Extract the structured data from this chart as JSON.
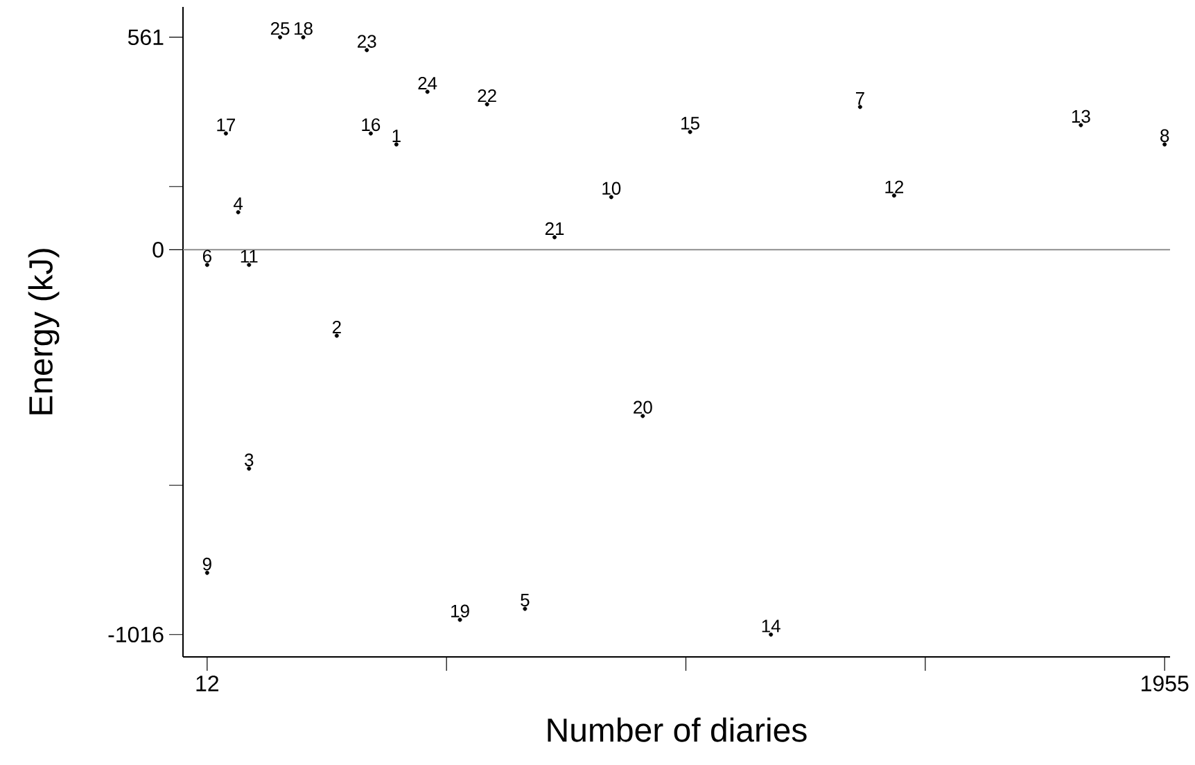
{
  "chart_data": {
    "type": "scatter",
    "xlabel": "Number of diaries",
    "ylabel": "Energy (kJ)",
    "marker": "circle",
    "series": [
      {
        "name": "1",
        "color": "#000000",
        "x": [
          396
        ],
        "values": [
          278
        ]
      },
      {
        "name": "2",
        "color": "#000000",
        "x": [
          275
        ],
        "values": [
          -227
        ]
      },
      {
        "name": "3",
        "color": "#000000",
        "x": [
          97
        ],
        "values": [
          -578
        ]
      },
      {
        "name": "4",
        "color": "#000000",
        "x": [
          75
        ],
        "values": [
          99
        ]
      },
      {
        "name": "5",
        "color": "#000000",
        "x": [
          657
        ],
        "values": [
          -948
        ]
      },
      {
        "name": "6",
        "color": "#000000",
        "x": [
          12
        ],
        "values": [
          -40
        ]
      },
      {
        "name": "7",
        "color": "#000000",
        "x": [
          1337
        ],
        "values": [
          377
        ]
      },
      {
        "name": "8",
        "color": "#000000",
        "x": [
          1955
        ],
        "values": [
          278
        ]
      },
      {
        "name": "9",
        "color": "#000000",
        "x": [
          12
        ],
        "values": [
          -853
        ]
      },
      {
        "name": "10",
        "color": "#000000",
        "x": [
          832
        ],
        "values": [
          139
        ]
      },
      {
        "name": "11",
        "color": "#000000",
        "x": [
          97
        ],
        "values": [
          -40
        ]
      },
      {
        "name": "12",
        "color": "#000000",
        "x": [
          1406
        ],
        "values": [
          143
        ]
      },
      {
        "name": "13",
        "color": "#000000",
        "x": [
          1785
        ],
        "values": [
          329
        ]
      },
      {
        "name": "14",
        "color": "#000000",
        "x": [
          1156
        ],
        "values": [
          -1016
        ]
      },
      {
        "name": "15",
        "color": "#000000",
        "x": [
          992
        ],
        "values": [
          311
        ]
      },
      {
        "name": "16",
        "color": "#000000",
        "x": [
          344
        ],
        "values": [
          307
        ]
      },
      {
        "name": "17",
        "color": "#000000",
        "x": [
          50
        ],
        "values": [
          307
        ]
      },
      {
        "name": "18",
        "color": "#000000",
        "x": [
          207
        ],
        "values": [
          561
        ]
      },
      {
        "name": "19",
        "color": "#000000",
        "x": [
          525
        ],
        "values": [
          -977
        ]
      },
      {
        "name": "20",
        "color": "#000000",
        "x": [
          896
        ],
        "values": [
          -439
        ]
      },
      {
        "name": "21",
        "color": "#000000",
        "x": [
          717
        ],
        "values": [
          33
        ]
      },
      {
        "name": "22",
        "color": "#000000",
        "x": [
          580
        ],
        "values": [
          384
        ]
      },
      {
        "name": "23",
        "color": "#000000",
        "x": [
          336
        ],
        "values": [
          527
        ]
      },
      {
        "name": "24",
        "color": "#000000",
        "x": [
          459
        ],
        "values": [
          417
        ]
      },
      {
        "name": "25",
        "color": "#000000",
        "x": [
          160
        ],
        "values": [
          561
        ]
      }
    ],
    "xlim": [
      -37,
      1966
    ],
    "ylim": [
      -1075,
      641
    ],
    "xticks": [
      12,
      {
        "value": 497.75,
        "label": null
      },
      {
        "value": 983.5,
        "label": null
      },
      {
        "value": 1469.25,
        "label": null
      },
      1955
    ],
    "yticks": [
      -1016,
      {
        "value": -621.75,
        "label": null
      },
      0,
      {
        "value": 166.75,
        "label": null
      },
      561
    ],
    "ref_lines": [
      {
        "axis": "y",
        "value": 0,
        "color": "#808080"
      }
    ]
  }
}
